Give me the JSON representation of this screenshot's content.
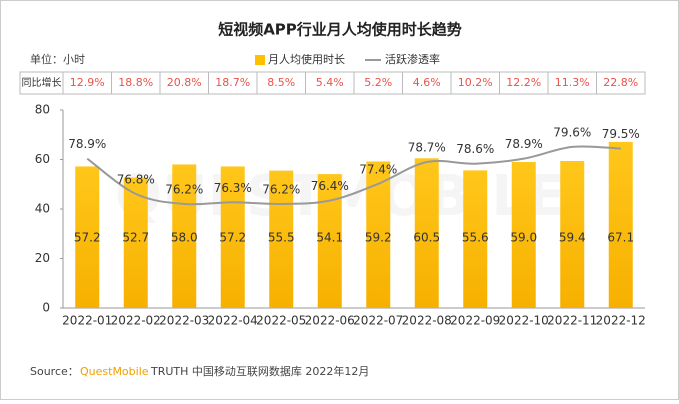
{
  "chart_data": {
    "type": "bar",
    "title": "短视频APP行业月人均使用时长趋势",
    "unit": "单位：小时",
    "watermark": "QUESTMOBILE",
    "categories": [
      "2022-01",
      "2022-02",
      "2022-03",
      "2022-04",
      "2022-05",
      "2022-06",
      "2022-07",
      "2022-08",
      "2022-09",
      "2022-10",
      "2022-11",
      "2022-12"
    ],
    "series": [
      {
        "name": "月人均使用时长",
        "color": "#ffc000",
        "type": "bar",
        "values": [
          57.2,
          52.7,
          58.0,
          57.2,
          55.5,
          54.1,
          59.2,
          60.5,
          55.6,
          59.0,
          59.4,
          67.1
        ],
        "value_labels": [
          "57.2",
          "52.7",
          "58.0",
          "57.2",
          "55.5",
          "54.1",
          "59.2",
          "60.5",
          "55.6",
          "59.0",
          "59.4",
          "67.1"
        ]
      },
      {
        "name": "活跃渗透率",
        "color": "#999999",
        "type": "line",
        "axis": "y2",
        "values": [
          78.9,
          76.8,
          76.2,
          76.3,
          76.2,
          76.4,
          77.4,
          78.7,
          78.6,
          78.9,
          79.6,
          79.5
        ],
        "value_labels": [
          "78.9%",
          "76.8%",
          "76.2%",
          "76.3%",
          "76.2%",
          "76.4%",
          "77.4%",
          "78.7%",
          "78.6%",
          "78.9%",
          "79.6%",
          "79.5%"
        ]
      }
    ],
    "growth": {
      "label": "同比增长",
      "values": [
        "12.9%",
        "18.8%",
        "20.8%",
        "18.7%",
        "8.5%",
        "5.4%",
        "5.2%",
        "4.6%",
        "10.2%",
        "12.2%",
        "11.3%",
        "22.8%"
      ]
    },
    "ylim": [
      0,
      80
    ],
    "yticks": [
      0,
      20,
      40,
      60,
      80
    ],
    "y2lim": [
      70,
      81.8
    ],
    "source": {
      "prefix": "Source：",
      "brand": "QuestMobile",
      "rest": "TRUTH 中国移动互联网数据库 2022年12月"
    }
  }
}
